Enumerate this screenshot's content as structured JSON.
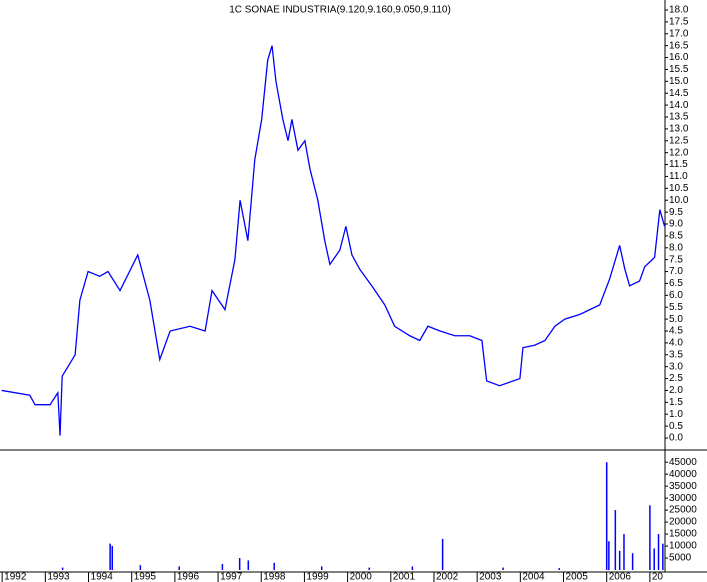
{
  "chart_data": [
    {
      "type": "line",
      "title": "1C SONAE INDUSTRIA(9.120,9.160,9.050,9.110)",
      "series": [
        {
          "name": "SONAE INDUSTRIA",
          "color": "#0000ff",
          "x": [
            1991.99,
            1992.64,
            1992.76,
            1993.11,
            1993.29,
            1993.34,
            1993.39,
            1993.69,
            1993.8,
            1993.99,
            1994.26,
            1994.45,
            1994.73,
            1995.14,
            1995.42,
            1995.65,
            1995.89,
            1996.35,
            1996.7,
            1996.86,
            1997.16,
            1997.39,
            1997.51,
            1997.69,
            1997.85,
            1998.01,
            1998.15,
            1998.25,
            1998.34,
            1998.5,
            1998.62,
            1998.71,
            1998.85,
            1999.01,
            1999.13,
            1999.31,
            1999.47,
            1999.59,
            1999.82,
            1999.96,
            2000.1,
            2000.28,
            2000.56,
            2000.86,
            2001.09,
            2001.44,
            2001.67,
            2001.86,
            2002.14,
            2002.48,
            2002.83,
            2003.11,
            2003.22,
            2003.52,
            2003.99,
            2004.06,
            2004.33,
            2004.57,
            2004.8,
            2005.03,
            2005.38,
            2005.84,
            2006.07,
            2006.3,
            2006.42,
            2006.53,
            2006.76,
            2006.88,
            2007.11,
            2007.23,
            2007.34
          ],
          "values": [
            2.0,
            1.8,
            1.4,
            1.4,
            1.9,
            0.1,
            2.6,
            3.5,
            5.8,
            7.0,
            6.8,
            7.0,
            6.2,
            7.7,
            5.8,
            3.3,
            4.5,
            4.7,
            4.5,
            6.2,
            5.4,
            7.5,
            10.0,
            8.3,
            11.7,
            13.4,
            15.9,
            16.5,
            15.0,
            13.4,
            12.5,
            13.4,
            12.1,
            12.5,
            11.3,
            10.0,
            8.3,
            7.3,
            7.9,
            8.9,
            7.7,
            7.1,
            6.4,
            5.6,
            4.7,
            4.3,
            4.1,
            4.7,
            4.5,
            4.3,
            4.3,
            4.1,
            2.4,
            2.2,
            2.5,
            3.8,
            3.9,
            4.1,
            4.7,
            5.0,
            5.2,
            5.6,
            6.7,
            8.1,
            7.1,
            6.4,
            6.6,
            7.2,
            7.6,
            9.6,
            8.9
          ]
        }
      ],
      "xlim": [
        1991.95,
        2007.35
      ],
      "ylim": [
        0,
        18
      ],
      "yticks": [
        {
          "value": 0,
          "label": "0.0"
        },
        0.5,
        {
          "value": 1,
          "label": "1.0"
        },
        1.5,
        {
          "value": 2,
          "label": "2.0"
        },
        2.5,
        {
          "value": 3,
          "label": "3.0"
        },
        3.5,
        {
          "value": 4,
          "label": "4.0"
        },
        4.5,
        {
          "value": 5,
          "label": "5.0"
        },
        5.5,
        {
          "value": 6,
          "label": "6.0"
        },
        6.5,
        {
          "value": 7,
          "label": "7.0"
        },
        7.5,
        {
          "value": 8,
          "label": "8.0"
        },
        8.5,
        {
          "value": 9,
          "label": "9.0"
        },
        9.5,
        {
          "value": 10,
          "label": "10.0"
        },
        10.5,
        {
          "value": 11,
          "label": "11.0"
        },
        11.5,
        {
          "value": 12,
          "label": "12.0"
        },
        12.5,
        {
          "value": 13,
          "label": "13.0"
        },
        13.5,
        {
          "value": 14,
          "label": "14.0"
        },
        14.5,
        {
          "value": 15,
          "label": "15.0"
        },
        15.5,
        {
          "value": 16,
          "label": "16.0"
        },
        16.5,
        {
          "value": 17,
          "label": "17.0"
        },
        17.5,
        {
          "value": 18,
          "label": "18.0"
        }
      ]
    },
    {
      "type": "bar",
      "color": "#0000ff",
      "x": [
        1993.4,
        1994.5,
        1994.55,
        1995.2,
        1996.1,
        1997.1,
        1997.5,
        1997.7,
        1998.3,
        1999.4,
        2000.5,
        2001.5,
        2002.2,
        2003.6,
        2004.9,
        2006.0,
        2006.05,
        2006.2,
        2006.3,
        2006.4,
        2006.6,
        2007.0,
        2007.1,
        2007.2,
        2007.3
      ],
      "values": [
        1000,
        11000,
        10000,
        2000,
        1500,
        2500,
        5000,
        4000,
        3000,
        1500,
        1000,
        1500,
        13000,
        1000,
        800,
        45000,
        12000,
        25000,
        8000,
        15000,
        7000,
        27000,
        9000,
        15000,
        11000
      ],
      "xlim": [
        1991.95,
        2007.35
      ],
      "ylim": [
        0,
        48000
      ],
      "yticks": [
        5000,
        10000,
        15000,
        20000,
        25000,
        30000,
        35000,
        40000,
        45000
      ],
      "xticks": [
        1992,
        1993,
        1994,
        1995,
        1996,
        1997,
        1998,
        1999,
        2000,
        2001,
        2002,
        2003,
        2004,
        2005,
        2006,
        {
          "value": 2007,
          "label": "20"
        }
      ]
    }
  ]
}
